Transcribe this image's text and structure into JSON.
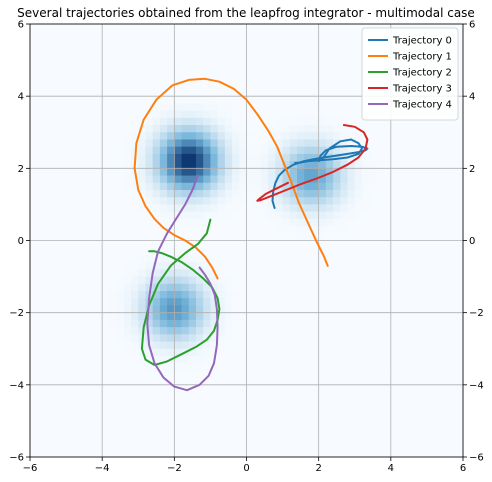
{
  "chart_data": {
    "type": "line",
    "title": "Several trajectories obtained from the leapfrog integrator - multimodal case",
    "xlabel": "",
    "ylabel": "",
    "xlim": [
      -6,
      6
    ],
    "ylim": [
      -6,
      6
    ],
    "xticks": [
      -6,
      -4,
      -2,
      0,
      2,
      4,
      6
    ],
    "yticks": [
      -6,
      -4,
      -2,
      0,
      2,
      4,
      6
    ],
    "grid": true,
    "legend_position": "top-right",
    "background": {
      "type": "density",
      "colormap": "Blues",
      "modes": [
        {
          "center": [
            -1.6,
            2.2
          ],
          "sigma": 0.55,
          "weight": 1.0
        },
        {
          "center": [
            1.8,
            1.8
          ],
          "sigma": 0.55,
          "weight": 0.55
        },
        {
          "center": [
            -2.0,
            -1.9
          ],
          "sigma": 0.55,
          "weight": 0.6
        }
      ]
    },
    "series": [
      {
        "name": "Trajectory 0",
        "color": "#1f77b4",
        "x": [
          0.78,
          0.72,
          0.74,
          0.8,
          0.9,
          1.05,
          1.3,
          1.6,
          2.0,
          2.4,
          2.8,
          3.1,
          3.3,
          3.35,
          3.2,
          2.9,
          2.5,
          2.2,
          2.05,
          2.0,
          2.1,
          2.3,
          2.6,
          2.9,
          3.1,
          3.2,
          3.1,
          2.8,
          2.4,
          2.0,
          1.7,
          1.45,
          1.35
        ],
        "y": [
          0.9,
          1.1,
          1.35,
          1.6,
          1.8,
          1.95,
          2.1,
          2.2,
          2.28,
          2.34,
          2.4,
          2.45,
          2.5,
          2.55,
          2.6,
          2.62,
          2.6,
          2.5,
          2.35,
          2.2,
          2.25,
          2.55,
          2.75,
          2.8,
          2.7,
          2.55,
          2.4,
          2.3,
          2.25,
          2.22,
          2.2,
          2.15,
          2.15
        ]
      },
      {
        "name": "Trajectory 1",
        "color": "#ff7f0e",
        "x": [
          2.25,
          2.15,
          1.95,
          1.7,
          1.45,
          1.25,
          1.05,
          0.85,
          0.6,
          0.3,
          0.0,
          -0.35,
          -0.75,
          -1.15,
          -1.6,
          -2.05,
          -2.5,
          -2.85,
          -3.05,
          -3.1,
          -3.0,
          -2.8,
          -2.55,
          -2.3,
          -2.0,
          -1.7,
          -1.4,
          -1.15,
          -0.95,
          -0.8
        ],
        "y": [
          -0.7,
          -0.45,
          -0.05,
          0.5,
          1.05,
          1.6,
          2.1,
          2.6,
          3.05,
          3.5,
          3.9,
          4.2,
          4.4,
          4.48,
          4.45,
          4.3,
          3.9,
          3.35,
          2.7,
          2.0,
          1.4,
          0.95,
          0.6,
          0.35,
          0.15,
          0.0,
          -0.2,
          -0.45,
          -0.75,
          -1.05
        ]
      },
      {
        "name": "Trajectory 2",
        "color": "#2ca02c",
        "x": [
          -1.0,
          -1.1,
          -1.35,
          -1.7,
          -2.1,
          -2.45,
          -2.7,
          -2.85,
          -2.9,
          -2.8,
          -2.55,
          -2.2,
          -1.8,
          -1.4,
          -1.1,
          -0.9,
          -0.8,
          -0.75,
          -0.8,
          -0.95,
          -1.2,
          -1.5,
          -1.8,
          -2.1,
          -2.35,
          -2.55,
          -2.7
        ],
        "y": [
          0.58,
          0.2,
          -0.1,
          -0.35,
          -0.7,
          -1.2,
          -1.8,
          -2.4,
          -3.0,
          -3.3,
          -3.45,
          -3.35,
          -3.15,
          -2.95,
          -2.75,
          -2.5,
          -2.2,
          -1.9,
          -1.6,
          -1.3,
          -1.05,
          -0.8,
          -0.6,
          -0.45,
          -0.35,
          -0.3,
          -0.3
        ]
      },
      {
        "name": "Trajectory 3",
        "color": "#d62728",
        "x": [
          2.7,
          3.0,
          3.25,
          3.35,
          3.3,
          3.1,
          2.8,
          2.4,
          1.95,
          1.5,
          1.1,
          0.8,
          0.55,
          0.4,
          0.3,
          0.35,
          0.55,
          0.85,
          1.15
        ],
        "y": [
          3.2,
          3.15,
          3.0,
          2.8,
          2.55,
          2.3,
          2.1,
          1.9,
          1.72,
          1.56,
          1.4,
          1.28,
          1.18,
          1.12,
          1.1,
          1.15,
          1.3,
          1.45,
          1.6
        ]
      },
      {
        "name": "Trajectory 4",
        "color": "#9467bd",
        "x": [
          -1.35,
          -1.5,
          -1.7,
          -1.95,
          -2.2,
          -2.45,
          -2.6,
          -2.7,
          -2.75,
          -2.7,
          -2.55,
          -2.3,
          -2.0,
          -1.65,
          -1.3,
          -1.05,
          -0.9,
          -0.82,
          -0.8,
          -0.82,
          -0.88,
          -1.0,
          -1.15,
          -1.3
        ],
        "y": [
          1.8,
          1.4,
          1.0,
          0.6,
          0.2,
          -0.3,
          -0.9,
          -1.6,
          -2.3,
          -2.9,
          -3.4,
          -3.8,
          -4.05,
          -4.15,
          -4.0,
          -3.75,
          -3.4,
          -2.9,
          -2.4,
          -1.9,
          -1.5,
          -1.2,
          -0.95,
          -0.75
        ]
      }
    ]
  }
}
